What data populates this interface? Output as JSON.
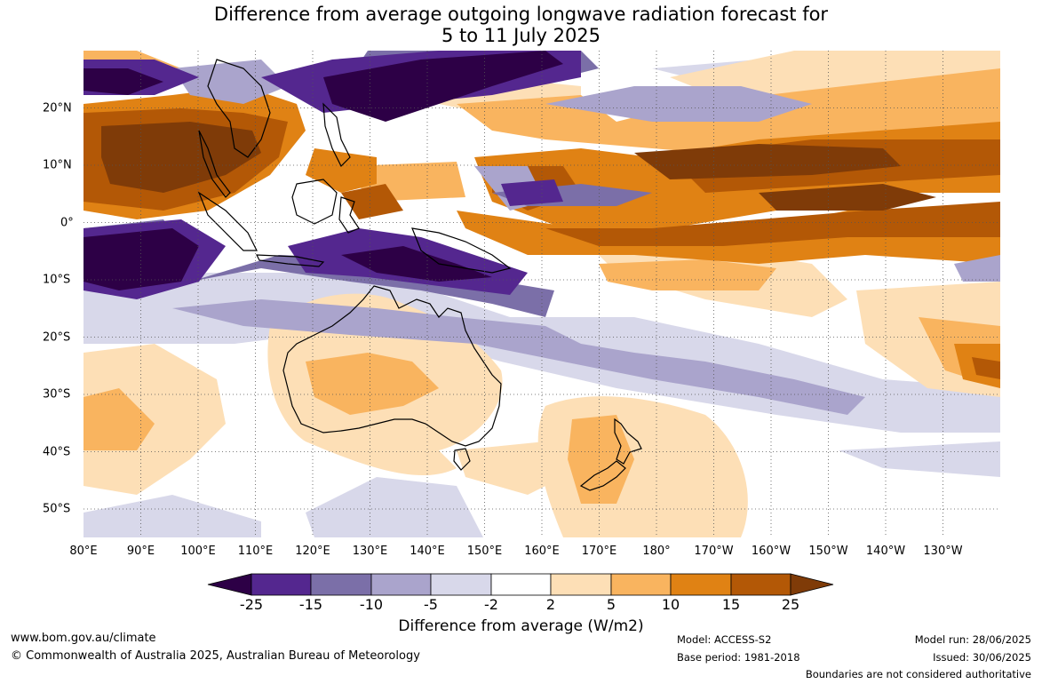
{
  "title": {
    "line1": "Difference from average outgoing longwave radiation forecast for",
    "line2": "5 to 11 July 2025"
  },
  "map": {
    "lon_labels": [
      "80°E",
      "90°E",
      "100°E",
      "110°E",
      "120°E",
      "130°E",
      "140°E",
      "150°E",
      "160°E",
      "170°E",
      "180°",
      "170°W",
      "160°W",
      "150°W",
      "140°W",
      "130°W"
    ],
    "lat_labels": [
      "20°N",
      "10°N",
      "0°",
      "10°S",
      "20°S",
      "30°S",
      "40°S",
      "50°S"
    ],
    "extent": {
      "lon_min": 80,
      "lon_max": 240,
      "lat_min": -55,
      "lat_max": 30
    }
  },
  "legend": {
    "tick_labels": [
      "-25",
      "-15",
      "-10",
      "-5",
      "-2",
      "2",
      "5",
      "10",
      "15",
      "25"
    ],
    "colors": {
      "lt_neg25": "#2d0046",
      "neg25_neg15": "#54278f",
      "neg15_neg10": "#7b6fa8",
      "neg10_neg5": "#aaa4cc",
      "neg5_neg2": "#d8d8ea",
      "neg2_2": "#ffffff",
      "2_5": "#fddfb6",
      "5_10": "#f9b45f",
      "10_15": "#e08214",
      "15_25": "#b35806",
      "gt_25": "#7f3b08"
    },
    "title": "Difference from average (W/m2)"
  },
  "footer": {
    "website": "www.bom.gov.au/climate",
    "copyright": "© Commonwealth of Australia 2025, Australian Bureau of Meteorology",
    "model": "Model: ACCESS-S2",
    "base_period": "Base period: 1981-2018",
    "model_run": "Model run: 28/06/2025",
    "issued": "Issued: 30/06/2025",
    "disclaimer": "Boundaries are not considered authoritative"
  }
}
